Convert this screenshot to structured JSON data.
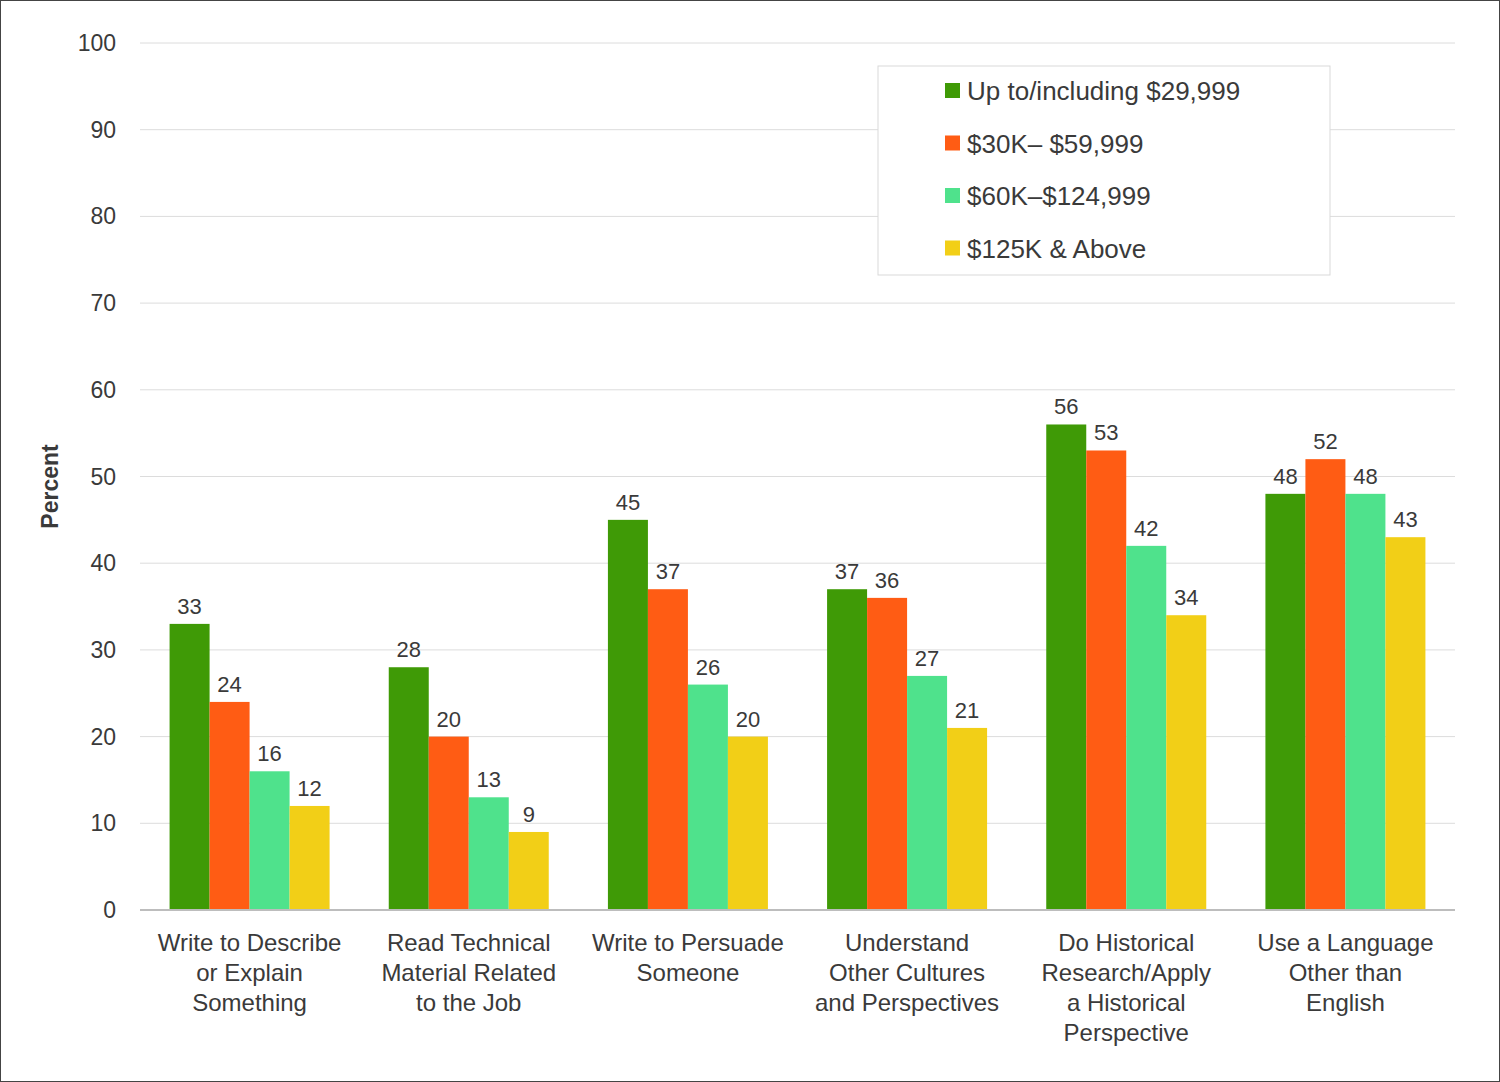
{
  "chart_data": {
    "type": "bar",
    "ylabel": "Percent",
    "categories": [
      "Write to Describe\nor Explain\nSomething",
      "Read Technical\nMaterial Related\nto the Job",
      "Write to Persuade\nSomeone",
      "Understand\nOther Cultures\nand Perspectives",
      "Do Historical\nResearch/Apply\na Historical\nPerspective",
      "Use a Language\nOther than\nEnglish"
    ],
    "series": [
      {
        "name": "Up to/including $29,999",
        "color": "#3f9a06",
        "values": [
          33,
          28,
          45,
          37,
          56,
          48
        ]
      },
      {
        "name": "$30K– $59,999",
        "color": "#ff5c14",
        "values": [
          24,
          20,
          37,
          36,
          53,
          52
        ]
      },
      {
        "name": "$60K–$124,999",
        "color": "#4fe28c",
        "values": [
          16,
          13,
          26,
          27,
          42,
          48
        ]
      },
      {
        "name": "$125K & Above",
        "color": "#f2cf17",
        "values": [
          12,
          9,
          20,
          21,
          34,
          43
        ]
      }
    ],
    "ylim": [
      0,
      100
    ],
    "yticks": [
      0,
      10,
      20,
      30,
      40,
      50,
      60,
      70,
      80,
      90,
      100
    ],
    "grid": true,
    "legend": "top-right",
    "data_labels": true
  }
}
